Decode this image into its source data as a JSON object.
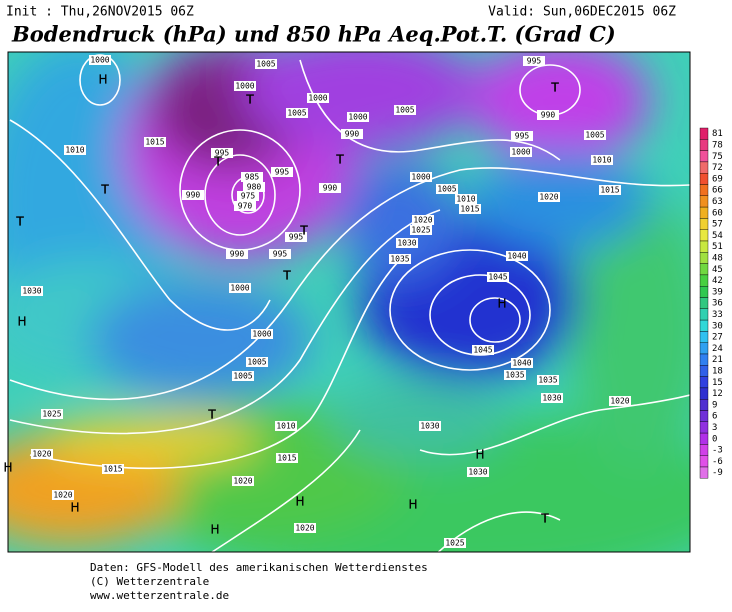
{
  "header": {
    "init": "Init : Thu,26NOV2015 06Z",
    "valid": "Valid: Sun,06DEC2015 06Z",
    "title": "Bodendruck (hPa) und 850 hPa Aeq.Pot.T. (Grad C)"
  },
  "colorbar": {
    "labels": [
      "81",
      "78",
      "75",
      "72",
      "69",
      "66",
      "63",
      "60",
      "57",
      "54",
      "51",
      "48",
      "45",
      "42",
      "39",
      "36",
      "33",
      "30",
      "27",
      "24",
      "21",
      "18",
      "15",
      "12",
      "9",
      "6",
      "3",
      "0",
      "-3",
      "-6",
      "-9"
    ]
  },
  "isobar_labels": [
    "1000",
    "1000",
    "1005",
    "1005",
    "1000",
    "1000",
    "1005",
    "995",
    "990",
    "995",
    "1000",
    "1005",
    "1010",
    "1015",
    "1020",
    "1010",
    "1015",
    "995",
    "985",
    "980",
    "975",
    "970",
    "990",
    "990",
    "995",
    "995",
    "1000",
    "995",
    "990",
    "990",
    "1000",
    "1005",
    "1010",
    "1015",
    "1020",
    "1025",
    "1030",
    "1035",
    "1040",
    "1045",
    "1045",
    "1040",
    "1035",
    "1035",
    "1030",
    "1020",
    "1030",
    "1000",
    "1005",
    "1005",
    "1025",
    "1020",
    "1015",
    "1010",
    "1015",
    "1020",
    "1030",
    "1030",
    "1025",
    "1020",
    "1020"
  ],
  "pressure_centers": [
    "H",
    "T",
    "T",
    "H",
    "T",
    "T",
    "T",
    "T",
    "T",
    "T",
    "H",
    "T",
    "H",
    "H",
    "H",
    "H",
    "H",
    "H",
    "T"
  ],
  "footer": [
    "Daten: GFS-Modell des amerikanischen Wetterdienstes",
    "(C) Wetterzentrale",
    "www.wetterzentrale.de"
  ]
}
